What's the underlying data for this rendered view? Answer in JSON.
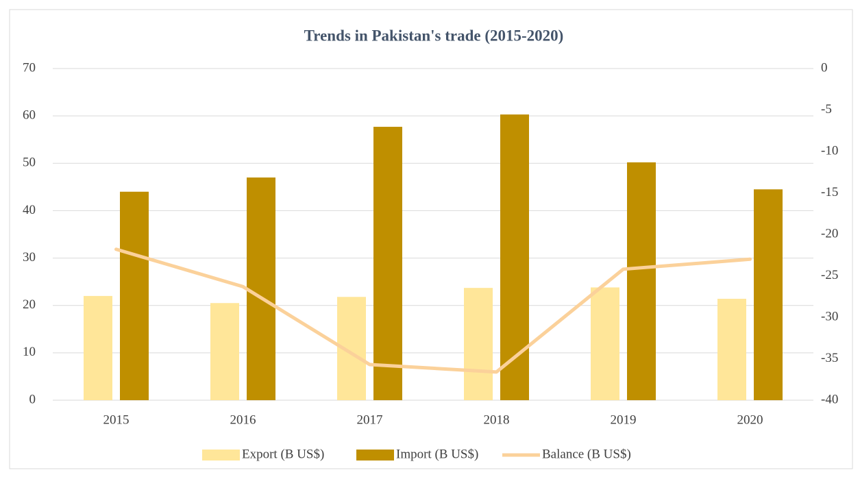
{
  "chart_data": {
    "type": "bar",
    "title": "Trends in Pakistan's trade (2015-2020)",
    "categories": [
      "2015",
      "2016",
      "2017",
      "2018",
      "2019",
      "2020"
    ],
    "series": [
      {
        "name": "Export (B US$)",
        "color": "#ffe699",
        "values": [
          22.0,
          20.5,
          21.8,
          23.7,
          23.8,
          21.4
        ]
      },
      {
        "name": "Import (B US$)",
        "color": "#bf8f00",
        "values": [
          44.0,
          47.0,
          57.7,
          60.3,
          50.2,
          44.5
        ]
      },
      {
        "name": "Balance (B US$)",
        "color": "#fbd19a",
        "type": "line",
        "axis": "y2",
        "values": [
          -21.8,
          -26.3,
          -35.7,
          -36.6,
          -24.2,
          -23.0
        ]
      }
    ],
    "ylim": [
      0,
      70
    ],
    "yticks": [
      0,
      10,
      20,
      30,
      40,
      50,
      60,
      70
    ],
    "y2lim": [
      -40,
      0
    ],
    "y2ticks": [
      -40,
      -35,
      -30,
      -25,
      -20,
      -15,
      -10,
      -5,
      0
    ],
    "grid": true,
    "legend": "bottom"
  }
}
